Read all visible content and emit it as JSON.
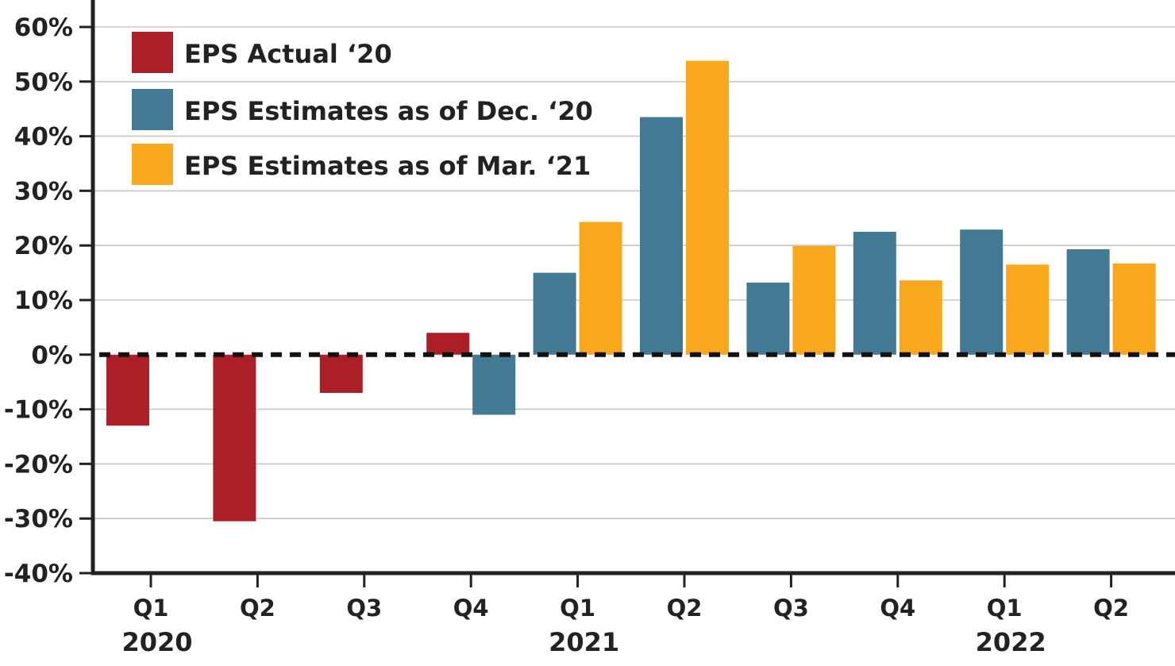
{
  "chart_data": {
    "type": "bar",
    "title": "",
    "xlabel": "",
    "ylabel": "",
    "ylim": [
      -40,
      60
    ],
    "yticks": [
      60,
      50,
      40,
      30,
      20,
      10,
      0,
      -10,
      -20,
      -30,
      -40
    ],
    "ytick_labels": [
      "60%",
      "50%",
      "40%",
      "30%",
      "20%",
      "10%",
      "0%",
      "-10%",
      "-20%",
      "-30%",
      "-40%"
    ],
    "grid": "horizontal",
    "legend_position": "top-left",
    "categories": [
      "Q1",
      "Q2",
      "Q3",
      "Q4",
      "Q1",
      "Q2",
      "Q3",
      "Q4",
      "Q1",
      "Q2"
    ],
    "year_labels": [
      {
        "label": "2020",
        "category_index": 0
      },
      {
        "label": "2021",
        "category_index": 4
      },
      {
        "label": "2022",
        "category_index": 8
      }
    ],
    "series": [
      {
        "name": "EPS Actual ‘20",
        "color": "#ad1f26",
        "values": [
          -13,
          -30.5,
          -7,
          4,
          null,
          null,
          null,
          null,
          null,
          null
        ]
      },
      {
        "name": "EPS Estimates as of Dec. ‘20",
        "color": "#427a93",
        "values": [
          null,
          null,
          null,
          -11,
          15,
          43.5,
          13.2,
          22.5,
          22.9,
          19.3
        ]
      },
      {
        "name": "EPS Estimates as of Mar. ‘21",
        "color": "#f9a81e",
        "values": [
          null,
          null,
          null,
          null,
          24.3,
          53.8,
          19.9,
          13.6,
          16.5,
          16.7
        ]
      }
    ]
  }
}
